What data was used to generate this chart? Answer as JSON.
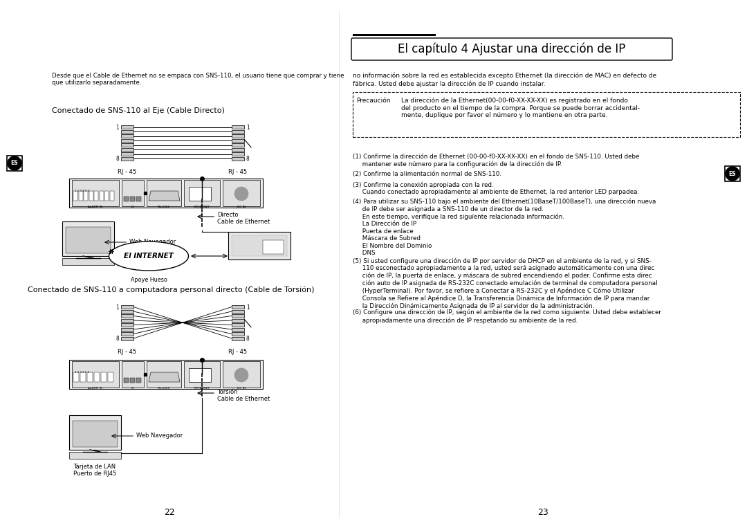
{
  "bg_color": "#ffffff",
  "title": "El capítulo 4 Ajustar una dirección de IP",
  "left_top_text": "Desde que el Cable de Ethernet no se empaca con SNS-110, el usuario tiene que comprar y tiene\nque utilizarlo separadamente.",
  "section1_title": "Conectado de SNS-110 al Eje (Cable Directo)",
  "section2_title": "Conectado de SNS-110 a computadora personal directo (Cable de Torsión)",
  "right_intro": "no información sobre la red es establecida excepto Ethernet (la dirección de MAC) en defecto de\nfábrica. Usted debe ajustar la dirección de IP cuando instalar.",
  "precaucion_label": "Precaución",
  "precaucion_text": "La dirección de la Ethernet(00-00-f0-XX-XX-XX) es registrado en el fondo\ndel producto en el tiempo de la compra. Porque se puede borrar accidental-\nmente, duplique por favor el número y lo mantiene en otra parte.",
  "numbered_items": [
    "(1) Confirme la dirección de Ethernet (00-00-f0-XX-XX-XX) en el fondo de SNS-110. Usted debe\n     mantener este número para la configuración de la dirección de IP.",
    "(2) Confirme la alimentación normal de SNS-110.",
    "(3) Confirme la conexión apropiada con la red.\n     Cuando conectado apropiadamente al ambiente de Ethernet, la red anterior LED parpadea.",
    "(4) Para utilizar su SNS-110 bajo el ambiente del Ethernet(10BaseT/100BaseT), una dirección nueva\n     de IP debe ser asignada a SNS-110 de un director de la red.\n     En este tiempo, verifique la red siguïente relacionada información.\n     La Dirección de IP\n     Puerta de enlace\n     Máscara de Subred\n     El Nombre del Dominio\n     DNS",
    "(5) Si usted configure una dirección de IP por servidor de DHCP en el ambiente de la red, y si SNS-\n     110 esconectado apropiadamente a la red, usted será asignado automáticamente con una direc\n     ción de IP, la puerta de enlace, y máscara de subred encendiendo el poder. Confirme esta direc\n     ción auto de IP asignada de RS-232C conectado emulación de terminal de computadora personal\n     (HyperTerminal). Por favor, se refiere a Conectar a RS-232C y el Apéndice C Cómo Utilizar\n     Consola se Refiere al Apéndice D, la Transferencia Dinámica de Información de IP para mandar\n     la Dirección Dinámicamente Asignada de IP al servidor de la administración.",
    "(6) Configure una dirección de IP, según el ambiente de la red como siguiente. Usted debe establecer\n     apropiadamente una dirección de IP respetando su ambiente de la red."
  ],
  "page_num_left": "22",
  "page_num_right": "23",
  "direct_label": "Directo\nCable de Ethernet",
  "internet_label": "El INTERNET",
  "apoye_label": "Apoye Hueso",
  "web_nav_label": "Web Navegador",
  "web_nav_label2": "Web Navegador",
  "torsion_label": "Torsión\nCable de Ethernet",
  "tarjeta_label": "Tarjeta de LAN\nPuerto de RJ45",
  "rj45_left": "RJ - 45",
  "rj45_right": "RJ - 45"
}
